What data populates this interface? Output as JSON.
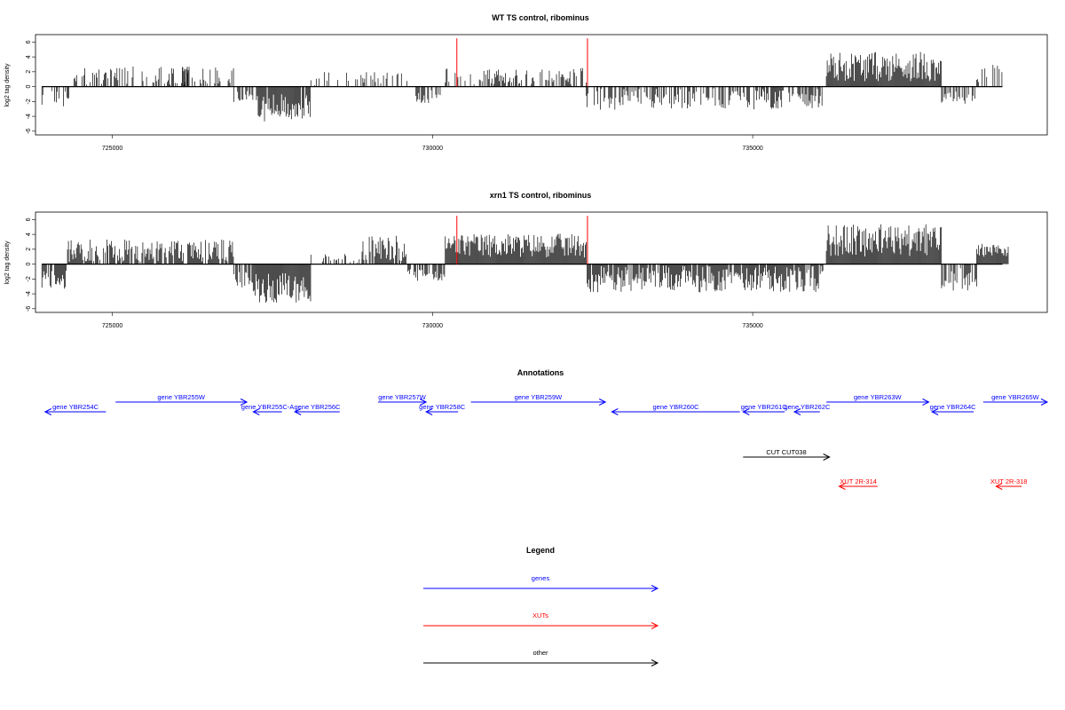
{
  "chart_data": [
    {
      "type": "bar",
      "title": "WT TS control, ribominus",
      "ylabel": "log2 tag density",
      "xlim": [
        723800,
        739600
      ],
      "ylim": [
        -6.5,
        7
      ],
      "x_ticks": [
        725000,
        730000,
        735000
      ],
      "y_ticks": [
        -6,
        -4,
        -2,
        0,
        2,
        4,
        6
      ],
      "highlight_lines": [
        730380,
        732420
      ],
      "highlight_color": "#ff0000",
      "baseline_range": [
        723900,
        738900
      ],
      "segments": [
        {
          "start": 723900,
          "end": 724400,
          "mean": -1.6,
          "amp": 1.2,
          "density": 0.35
        },
        {
          "start": 724400,
          "end": 726900,
          "mean": 1.4,
          "amp": 1.3,
          "density": 0.45
        },
        {
          "start": 726100,
          "end": 726200,
          "mean": 2.6,
          "amp": 0.6,
          "density": 0.9
        },
        {
          "start": 726900,
          "end": 727200,
          "mean": -1.4,
          "amp": 0.8,
          "density": 0.6
        },
        {
          "start": 727250,
          "end": 728100,
          "mean": -2.8,
          "amp": 1.9,
          "density": 0.95
        },
        {
          "start": 728100,
          "end": 729700,
          "mean": 1.0,
          "amp": 1.1,
          "density": 0.2
        },
        {
          "start": 729700,
          "end": 730200,
          "mean": -1.3,
          "amp": 1.0,
          "density": 0.55
        },
        {
          "start": 730200,
          "end": 732400,
          "mean": 1.4,
          "amp": 1.1,
          "density": 0.6
        },
        {
          "start": 732400,
          "end": 736100,
          "mean": -1.6,
          "amp": 1.5,
          "density": 0.55
        },
        {
          "start": 736150,
          "end": 737950,
          "mean": 2.7,
          "amp": 2.0,
          "density": 1.0
        },
        {
          "start": 737950,
          "end": 738500,
          "mean": -1.6,
          "amp": 1.0,
          "density": 0.45
        },
        {
          "start": 738500,
          "end": 738950,
          "mean": 1.8,
          "amp": 1.3,
          "density": 0.35
        }
      ]
    },
    {
      "type": "bar",
      "title": "xrn1 TS control, ribominus",
      "ylabel": "log2 tag density",
      "xlim": [
        723800,
        739600
      ],
      "ylim": [
        -6.5,
        7
      ],
      "x_ticks": [
        725000,
        730000,
        735000
      ],
      "y_ticks": [
        -6,
        -4,
        -2,
        0,
        2,
        4,
        6
      ],
      "highlight_lines": [
        730380,
        732420
      ],
      "highlight_color": "#ff0000",
      "baseline_range": [
        723900,
        738900
      ],
      "segments": [
        {
          "start": 723900,
          "end": 724300,
          "mean": -2.0,
          "amp": 1.3,
          "density": 0.8
        },
        {
          "start": 724300,
          "end": 726900,
          "mean": 1.8,
          "amp": 1.5,
          "density": 0.85
        },
        {
          "start": 726900,
          "end": 727200,
          "mean": -2.0,
          "amp": 1.2,
          "density": 0.8
        },
        {
          "start": 727200,
          "end": 728100,
          "mean": -3.2,
          "amp": 2.0,
          "density": 1.0
        },
        {
          "start": 728100,
          "end": 728900,
          "mean": 0.6,
          "amp": 0.8,
          "density": 0.25
        },
        {
          "start": 728900,
          "end": 729600,
          "mean": 2.2,
          "amp": 1.8,
          "density": 0.85
        },
        {
          "start": 729600,
          "end": 730200,
          "mean": -1.4,
          "amp": 0.9,
          "density": 0.75
        },
        {
          "start": 730200,
          "end": 732400,
          "mean": 2.5,
          "amp": 1.6,
          "density": 1.0
        },
        {
          "start": 732400,
          "end": 736100,
          "mean": -2.0,
          "amp": 1.8,
          "density": 0.9
        },
        {
          "start": 736150,
          "end": 737950,
          "mean": 3.2,
          "amp": 2.2,
          "density": 1.0
        },
        {
          "start": 737950,
          "end": 738500,
          "mean": -2.0,
          "amp": 1.6,
          "density": 0.7
        },
        {
          "start": 738500,
          "end": 739000,
          "mean": 1.9,
          "amp": 0.9,
          "density": 1.0
        }
      ]
    }
  ],
  "annotations": {
    "title": "Annotations",
    "features": [
      {
        "label": "gene YBR254C",
        "strand": "-",
        "start": 723950,
        "end": 724900,
        "color": "#0000ff",
        "row": 2
      },
      {
        "label": "gene YBR255W",
        "strand": "+",
        "start": 725050,
        "end": 727100,
        "color": "#0000ff",
        "row": 1
      },
      {
        "label": "gene YBR255C-A",
        "strand": "-",
        "start": 727200,
        "end": 727650,
        "color": "#0000ff",
        "row": 2
      },
      {
        "label": "gene YBR256C",
        "strand": "-",
        "start": 727850,
        "end": 728550,
        "color": "#0000ff",
        "row": 2
      },
      {
        "label": "gene YBR257W",
        "strand": "+",
        "start": 729150,
        "end": 729900,
        "color": "#0000ff",
        "row": 1
      },
      {
        "label": "gene YBR258C",
        "strand": "-",
        "start": 729900,
        "end": 730400,
        "color": "#0000ff",
        "row": 2
      },
      {
        "label": "gene YBR259W",
        "strand": "+",
        "start": 730600,
        "end": 732700,
        "color": "#0000ff",
        "row": 1
      },
      {
        "label": "gene YBR260C",
        "strand": "-",
        "start": 732800,
        "end": 734800,
        "color": "#0000ff",
        "row": 2
      },
      {
        "label": "gene YBR261C",
        "strand": "-",
        "start": 734850,
        "end": 735500,
        "color": "#0000ff",
        "row": 2
      },
      {
        "label": "gene YBR262C",
        "strand": "-",
        "start": 735650,
        "end": 736050,
        "color": "#0000ff",
        "row": 2
      },
      {
        "label": "gene YBR263W",
        "strand": "+",
        "start": 736150,
        "end": 737750,
        "color": "#0000ff",
        "row": 1
      },
      {
        "label": "gene YBR264C",
        "strand": "-",
        "start": 737800,
        "end": 738450,
        "color": "#0000ff",
        "row": 2
      },
      {
        "label": "gene YBR265W",
        "strand": "+",
        "start": 738600,
        "end": 739600,
        "color": "#0000ff",
        "row": 1
      },
      {
        "label": "CUT CUT038",
        "strand": "+",
        "start": 734850,
        "end": 736200,
        "color": "#000000",
        "row": 3
      },
      {
        "label": "XUT 2R-314",
        "strand": "-",
        "start": 736350,
        "end": 736950,
        "color": "#ff0000",
        "row": 4
      },
      {
        "label": "XUT 2R-318",
        "strand": "-",
        "start": 738800,
        "end": 739200,
        "color": "#ff0000",
        "row": 4
      }
    ]
  },
  "legend": {
    "title": "Legend",
    "items": [
      {
        "label": "genes",
        "color": "#0000ff"
      },
      {
        "label": "XUTs",
        "color": "#ff0000"
      },
      {
        "label": "other",
        "color": "#000000"
      }
    ]
  }
}
